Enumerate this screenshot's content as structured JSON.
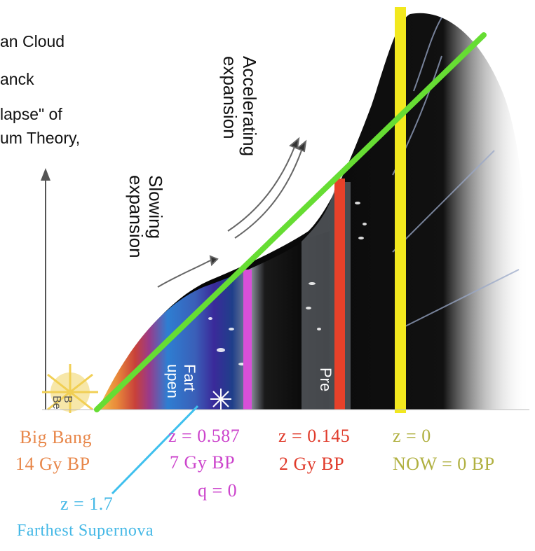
{
  "top_text": {
    "line1": "an Cloud",
    "line2": "anck",
    "line3": "lapse\" of",
    "line4": "um Theory,"
  },
  "regions": {
    "slowing_line1": "Slowing",
    "slowing_line2": "expansion",
    "accelerating_line1": "Accelerating",
    "accelerating_line2": "expansion",
    "farthest_fragment_1": "Fart",
    "farthest_fragment_2": "upen",
    "present_fragment": "Pre",
    "bigbang_fragment_1": "B",
    "bigbang_fragment_2": "Be"
  },
  "markers": {
    "big_bang": {
      "line1": "Big Bang",
      "line2": "14 Gy BP",
      "color": "#e8874a"
    },
    "z0587": {
      "line1": "z = 0.587",
      "line2": "7 Gy BP",
      "line3": "q = 0",
      "color": "#cc44cc"
    },
    "z0145": {
      "line1": "z = 0.145",
      "line2": "2 Gy BP",
      "color": "#e03a2a"
    },
    "z0": {
      "line1": "z = 0",
      "line2": "NOW = 0 BP",
      "color": "#b0b040"
    },
    "z17": {
      "line1": "z = 1.7",
      "line2": "Farthest Supernova",
      "color": "#44b8e6"
    }
  },
  "colors": {
    "green_line": "#66dd33",
    "yellow_bar": "#f2e81e",
    "red_bar": "#e8412a",
    "magenta_bar": "#d84fd8",
    "cyan_line": "#3fc0ee"
  }
}
